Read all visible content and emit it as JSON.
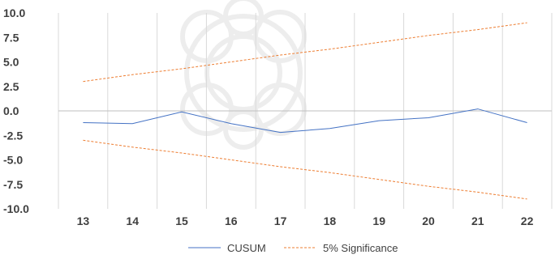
{
  "chart_data": {
    "type": "line",
    "x": [
      13,
      14,
      15,
      16,
      17,
      18,
      19,
      20,
      21,
      22
    ],
    "ylim": [
      -10.0,
      10.0
    ],
    "yticks": [
      "10.0",
      "7.5",
      "5.0",
      "2.5",
      "0.0",
      "-2.5",
      "-5.0",
      "-7.5",
      "-10.0"
    ],
    "ytick_values": [
      10,
      7.5,
      5,
      2.5,
      0,
      -2.5,
      -5,
      -7.5,
      -10
    ],
    "xticks": [
      "13",
      "14",
      "15",
      "16",
      "17",
      "18",
      "19",
      "20",
      "21",
      "22"
    ],
    "grid": "vertical",
    "legend_position": "bottom",
    "series": [
      {
        "name": "CUSUM",
        "style": "solid",
        "color": "#4472c4",
        "values": [
          -1.2,
          -1.3,
          -0.1,
          -1.3,
          -2.2,
          -1.8,
          -1.0,
          -0.7,
          0.2,
          -1.2
        ]
      },
      {
        "name": "5% Significance",
        "style": "dashed",
        "color": "#ed7d31",
        "values": [
          3.0,
          3.7,
          4.3,
          5.0,
          5.7,
          6.3,
          7.0,
          7.7,
          8.3,
          9.0
        ]
      },
      {
        "name": "",
        "style": "dashed",
        "color": "#ed7d31",
        "values": [
          -3.0,
          -3.7,
          -4.3,
          -5.0,
          -5.7,
          -6.3,
          -7.0,
          -7.7,
          -8.3,
          -9.0
        ]
      }
    ]
  },
  "legend": {
    "items": [
      {
        "label": "CUSUM",
        "style": "solid",
        "color": "#4472c4"
      },
      {
        "label": "5% Significance",
        "style": "dashed",
        "color": "#ed7d31"
      }
    ]
  },
  "colors": {
    "grid": "#d9d9d9",
    "zero_axis": "#bfbfbf",
    "text": "#404040",
    "watermark": "#ececec"
  }
}
